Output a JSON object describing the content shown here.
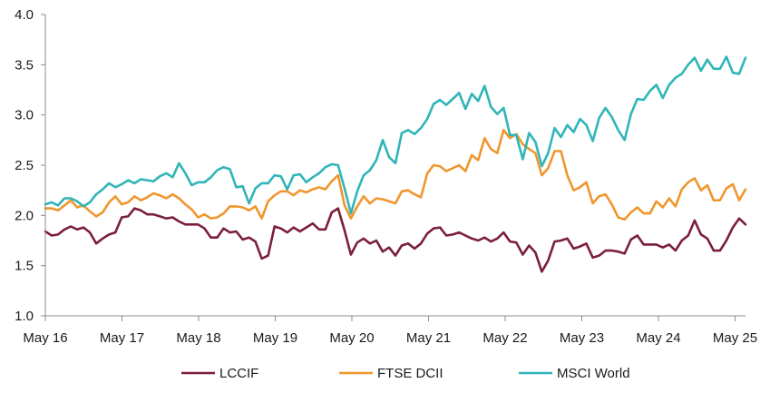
{
  "chart_data": {
    "type": "line",
    "title": "",
    "xlabel": "",
    "ylabel": "",
    "ylim": [
      1.0,
      4.0
    ],
    "yticks": [
      "1.0",
      "1.5",
      "2.0",
      "2.5",
      "3.0",
      "3.5",
      "4.0"
    ],
    "xticks": [
      "May 16",
      "May 17",
      "May 18",
      "May 19",
      "May 20",
      "May 21",
      "May 22",
      "May 23",
      "May 24",
      "May 25"
    ],
    "x_start": 2016.33,
    "x_step": 0.0833,
    "grid": false,
    "legend_position": "bottom",
    "series": [
      {
        "name": "LCCIF",
        "color": "#7b1f3a",
        "values": [
          1.84,
          1.8,
          1.81,
          1.86,
          1.89,
          1.86,
          1.88,
          1.83,
          1.72,
          1.77,
          1.81,
          1.83,
          1.98,
          1.99,
          2.07,
          2.05,
          2.01,
          2.01,
          1.99,
          1.97,
          1.98,
          1.94,
          1.91,
          1.91,
          1.91,
          1.87,
          1.78,
          1.78,
          1.87,
          1.83,
          1.84,
          1.76,
          1.78,
          1.74,
          1.57,
          1.6,
          1.89,
          1.87,
          1.83,
          1.88,
          1.84,
          1.88,
          1.92,
          1.86,
          1.86,
          2.03,
          2.07,
          1.85,
          1.61,
          1.73,
          1.77,
          1.72,
          1.75,
          1.64,
          1.68,
          1.6,
          1.7,
          1.72,
          1.67,
          1.72,
          1.82,
          1.87,
          1.88,
          1.8,
          1.81,
          1.83,
          1.8,
          1.77,
          1.75,
          1.78,
          1.74,
          1.77,
          1.83,
          1.74,
          1.73,
          1.61,
          1.7,
          1.63,
          1.44,
          1.55,
          1.74,
          1.75,
          1.77,
          1.67,
          1.69,
          1.72,
          1.58,
          1.6,
          1.65,
          1.65,
          1.64,
          1.62,
          1.76,
          1.8,
          1.71,
          1.71,
          1.71,
          1.68,
          1.71,
          1.65,
          1.75,
          1.8,
          1.95,
          1.81,
          1.77,
          1.65,
          1.65,
          1.75,
          1.88,
          1.97,
          1.91
        ]
      },
      {
        "name": "FTSE DCII",
        "color": "#f0962d",
        "values": [
          2.07,
          2.07,
          2.05,
          2.1,
          2.15,
          2.08,
          2.1,
          2.04,
          1.99,
          2.03,
          2.13,
          2.19,
          2.11,
          2.13,
          2.19,
          2.15,
          2.18,
          2.22,
          2.2,
          2.17,
          2.21,
          2.17,
          2.11,
          2.06,
          1.98,
          2.01,
          1.97,
          1.98,
          2.02,
          2.09,
          2.09,
          2.08,
          2.05,
          2.09,
          1.97,
          2.14,
          2.2,
          2.24,
          2.24,
          2.2,
          2.25,
          2.23,
          2.26,
          2.28,
          2.26,
          2.34,
          2.4,
          2.1,
          1.97,
          2.09,
          2.19,
          2.12,
          2.17,
          2.16,
          2.14,
          2.12,
          2.24,
          2.25,
          2.21,
          2.18,
          2.42,
          2.5,
          2.49,
          2.44,
          2.47,
          2.5,
          2.44,
          2.6,
          2.55,
          2.77,
          2.66,
          2.62,
          2.85,
          2.77,
          2.81,
          2.71,
          2.66,
          2.62,
          2.4,
          2.47,
          2.64,
          2.64,
          2.4,
          2.25,
          2.28,
          2.33,
          2.12,
          2.19,
          2.21,
          2.11,
          1.98,
          1.96,
          2.03,
          2.08,
          2.02,
          2.02,
          2.14,
          2.08,
          2.17,
          2.09,
          2.26,
          2.33,
          2.37,
          2.25,
          2.3,
          2.15,
          2.15,
          2.27,
          2.31,
          2.15,
          2.26
        ]
      },
      {
        "name": "MSCI World",
        "color": "#30b5b8",
        "values": [
          2.11,
          2.13,
          2.1,
          2.17,
          2.17,
          2.14,
          2.09,
          2.13,
          2.21,
          2.26,
          2.32,
          2.28,
          2.31,
          2.35,
          2.32,
          2.36,
          2.35,
          2.34,
          2.39,
          2.42,
          2.38,
          2.52,
          2.42,
          2.3,
          2.33,
          2.33,
          2.38,
          2.45,
          2.48,
          2.46,
          2.28,
          2.29,
          2.12,
          2.27,
          2.32,
          2.32,
          2.4,
          2.39,
          2.26,
          2.4,
          2.41,
          2.33,
          2.38,
          2.42,
          2.48,
          2.51,
          2.5,
          2.27,
          2.02,
          2.24,
          2.4,
          2.45,
          2.55,
          2.75,
          2.58,
          2.52,
          2.82,
          2.85,
          2.81,
          2.87,
          2.96,
          3.11,
          3.15,
          3.1,
          3.16,
          3.22,
          3.06,
          3.21,
          3.14,
          3.29,
          3.08,
          3.01,
          3.07,
          2.8,
          2.8,
          2.56,
          2.82,
          2.73,
          2.49,
          2.62,
          2.87,
          2.78,
          2.9,
          2.83,
          2.96,
          2.9,
          2.74,
          2.97,
          3.07,
          2.98,
          2.85,
          2.75,
          3.01,
          3.16,
          3.15,
          3.24,
          3.3,
          3.17,
          3.3,
          3.37,
          3.41,
          3.5,
          3.57,
          3.44,
          3.55,
          3.46,
          3.46,
          3.58,
          3.42,
          3.41,
          3.57
        ]
      }
    ]
  }
}
